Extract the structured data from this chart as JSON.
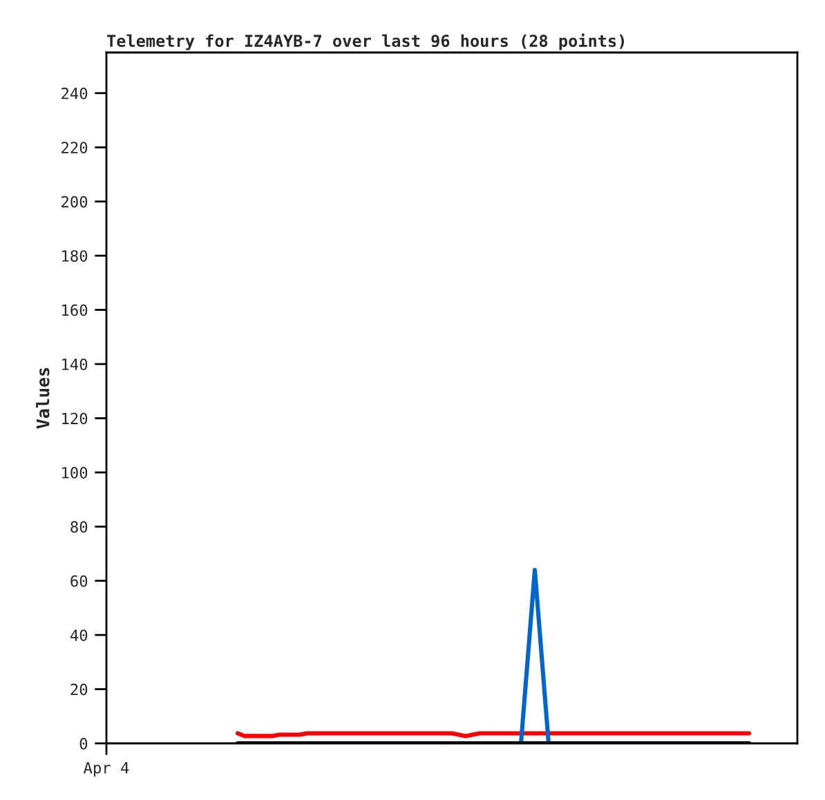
{
  "chart_data": {
    "type": "line",
    "title": "Telemetry for IZ4AYB-7 over last 96 hours (28 points)",
    "ylabel": "Values",
    "categories": [
      "Apr 4",
      null,
      null,
      null,
      null,
      null,
      null,
      null,
      null,
      null,
      null,
      null,
      null,
      null,
      null,
      null,
      null,
      null,
      null,
      null,
      null,
      null,
      null,
      null,
      null,
      null,
      null,
      null,
      null,
      null,
      null,
      null,
      null,
      null,
      null,
      null,
      null,
      null,
      null,
      null,
      null,
      null,
      null,
      null,
      null,
      null,
      null,
      null,
      null,
      null,
      null,
      null,
      null,
      null,
      null,
      null,
      null,
      null,
      null,
      null,
      null,
      null,
      null,
      null,
      null,
      null,
      null,
      null,
      null,
      null,
      null,
      null,
      null,
      null,
      null,
      null,
      null,
      null,
      null,
      null,
      null,
      null,
      null,
      null,
      null,
      null,
      null,
      null,
      null,
      null,
      null,
      null,
      null,
      null,
      null,
      null,
      null,
      null,
      null,
      null,
      null
    ],
    "ylim": [
      0,
      255
    ],
    "yticks": [
      0,
      20,
      40,
      60,
      80,
      100,
      120,
      140,
      160,
      180,
      200,
      220,
      240
    ],
    "grid": false,
    "legend": false,
    "marker": "none",
    "line_style": "solid",
    "series": [
      {
        "color": "#ff0000",
        "values": [
          null,
          null,
          null,
          null,
          null,
          null,
          null,
          null,
          null,
          null,
          null,
          null,
          null,
          null,
          null,
          null,
          null,
          null,
          null,
          3.7,
          2.7,
          2.7,
          2.7,
          2.7,
          2.7,
          3.2,
          3.2,
          3.2,
          3.2,
          3.7,
          3.7,
          3.7,
          3.7,
          3.7,
          3.7,
          3.7,
          3.7,
          3.7,
          3.7,
          3.7,
          3.7,
          3.7,
          3.7,
          3.7,
          3.7,
          3.7,
          3.7,
          3.7,
          3.7,
          3.7,
          3.7,
          3.2,
          2.7,
          3.2,
          3.7,
          3.7,
          3.7,
          3.7,
          3.7,
          3.7,
          3.7,
          3.7,
          3.7,
          3.7,
          3.7,
          3.7,
          3.7,
          3.7,
          3.7,
          3.7,
          3.7,
          3.7,
          3.7,
          3.7,
          3.7,
          3.7,
          3.7,
          3.7,
          3.7,
          3.7,
          3.7,
          3.7,
          3.7,
          3.7,
          3.7,
          3.7,
          3.7,
          3.7,
          3.7,
          3.7,
          3.7,
          3.7,
          3.7,
          3.7,
          null,
          null,
          null,
          null,
          null,
          null,
          null
        ]
      },
      {
        "color": "#0066cc",
        "values": [
          null,
          null,
          null,
          null,
          null,
          null,
          null,
          null,
          null,
          null,
          null,
          null,
          null,
          null,
          null,
          null,
          null,
          null,
          null,
          null,
          null,
          null,
          null,
          null,
          null,
          null,
          null,
          null,
          null,
          null,
          null,
          null,
          null,
          null,
          null,
          null,
          null,
          null,
          null,
          null,
          null,
          null,
          null,
          null,
          null,
          null,
          null,
          null,
          null,
          null,
          null,
          null,
          null,
          null,
          null,
          null,
          null,
          null,
          null,
          null,
          0,
          32,
          64,
          32,
          0,
          null,
          null,
          null,
          null,
          null,
          null,
          null,
          null,
          null,
          null,
          null,
          null,
          null,
          null,
          null,
          null,
          null,
          null,
          null,
          null,
          null,
          null,
          null,
          null,
          null,
          null,
          null,
          null,
          null,
          null,
          null,
          null,
          null,
          null,
          null,
          null
        ]
      },
      {
        "color": "#000000",
        "values": [
          null,
          null,
          null,
          null,
          null,
          null,
          null,
          null,
          null,
          null,
          null,
          null,
          null,
          null,
          null,
          null,
          null,
          null,
          null,
          0,
          0,
          0,
          0,
          0,
          0,
          0,
          0,
          0,
          0,
          0,
          0,
          0,
          0,
          0,
          0,
          0,
          0,
          0,
          0,
          0,
          0,
          0,
          0,
          0,
          0,
          0,
          0,
          0,
          0,
          0,
          0,
          0,
          0,
          0,
          0,
          0,
          0,
          0,
          0,
          0,
          0,
          0,
          0,
          0,
          0,
          0,
          0,
          0,
          0,
          0,
          0,
          0,
          0,
          0,
          0,
          0,
          0,
          0,
          0,
          0,
          0,
          0,
          0,
          0,
          0,
          0,
          0,
          0,
          0,
          0,
          0,
          0,
          0,
          0,
          null,
          null,
          null,
          null,
          null,
          null,
          null
        ]
      }
    ]
  }
}
